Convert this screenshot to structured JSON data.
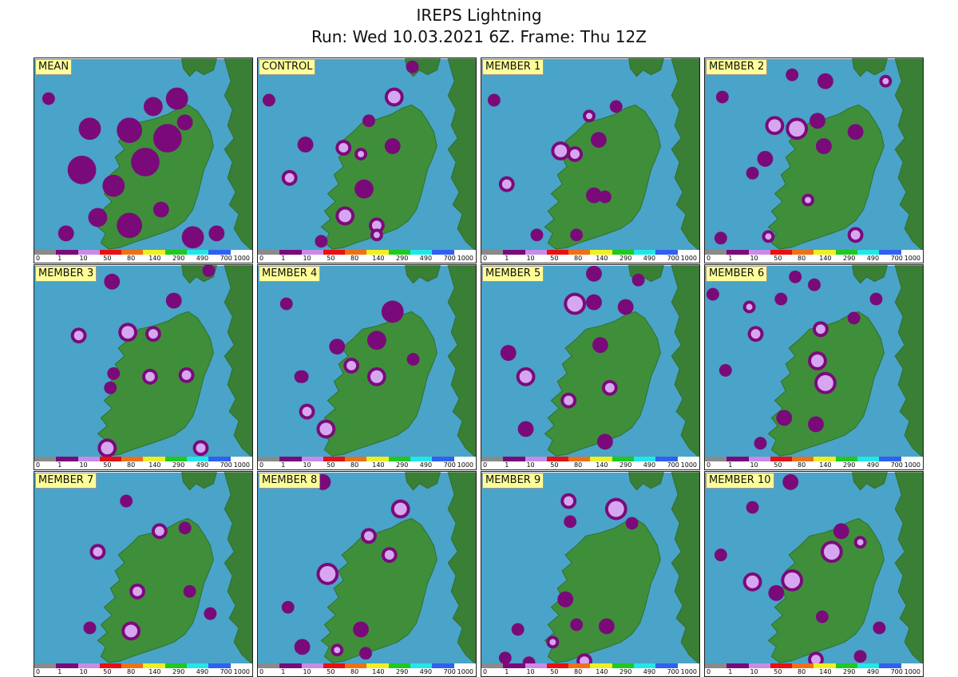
{
  "title": {
    "line1": "IREPS Lightning",
    "line2": "Run: Wed 10.03.2021 6Z.  Frame: Thu 12Z"
  },
  "colors": {
    "sea": "#4aa3c8",
    "land": "#3f8f3a",
    "land_dark": "#2f6f2c",
    "other_land": "#3a7f36",
    "purple": "#7a0a7a",
    "lilac": "#d7a6f0"
  },
  "legend": {
    "ticks": [
      "0",
      "1",
      "10",
      "50",
      "80",
      "140",
      "290",
      "490",
      "700",
      "1000"
    ],
    "colors": [
      "#8a8a8a",
      "#7a0a7a",
      "#c88ce8",
      "#e81010",
      "#f07018",
      "#f0f020",
      "#20c820",
      "#20e8e8",
      "#3060f0",
      "#ffffff"
    ]
  },
  "panels": [
    {
      "label": "MEAN",
      "map_kind": "mean"
    },
    {
      "label": "CONTROL",
      "map_kind": "member"
    },
    {
      "label": "MEMBER 1",
      "map_kind": "member"
    },
    {
      "label": "MEMBER 2",
      "map_kind": "member"
    },
    {
      "label": "MEMBER 3",
      "map_kind": "member"
    },
    {
      "label": "MEMBER 4",
      "map_kind": "member"
    },
    {
      "label": "MEMBER 5",
      "map_kind": "member"
    },
    {
      "label": "MEMBER 6",
      "map_kind": "member"
    },
    {
      "label": "MEMBER 7",
      "map_kind": "member"
    },
    {
      "label": "MEMBER 8",
      "map_kind": "member"
    },
    {
      "label": "MEMBER 9",
      "map_kind": "member"
    },
    {
      "label": "MEMBER 10",
      "map_kind": "member"
    }
  ]
}
